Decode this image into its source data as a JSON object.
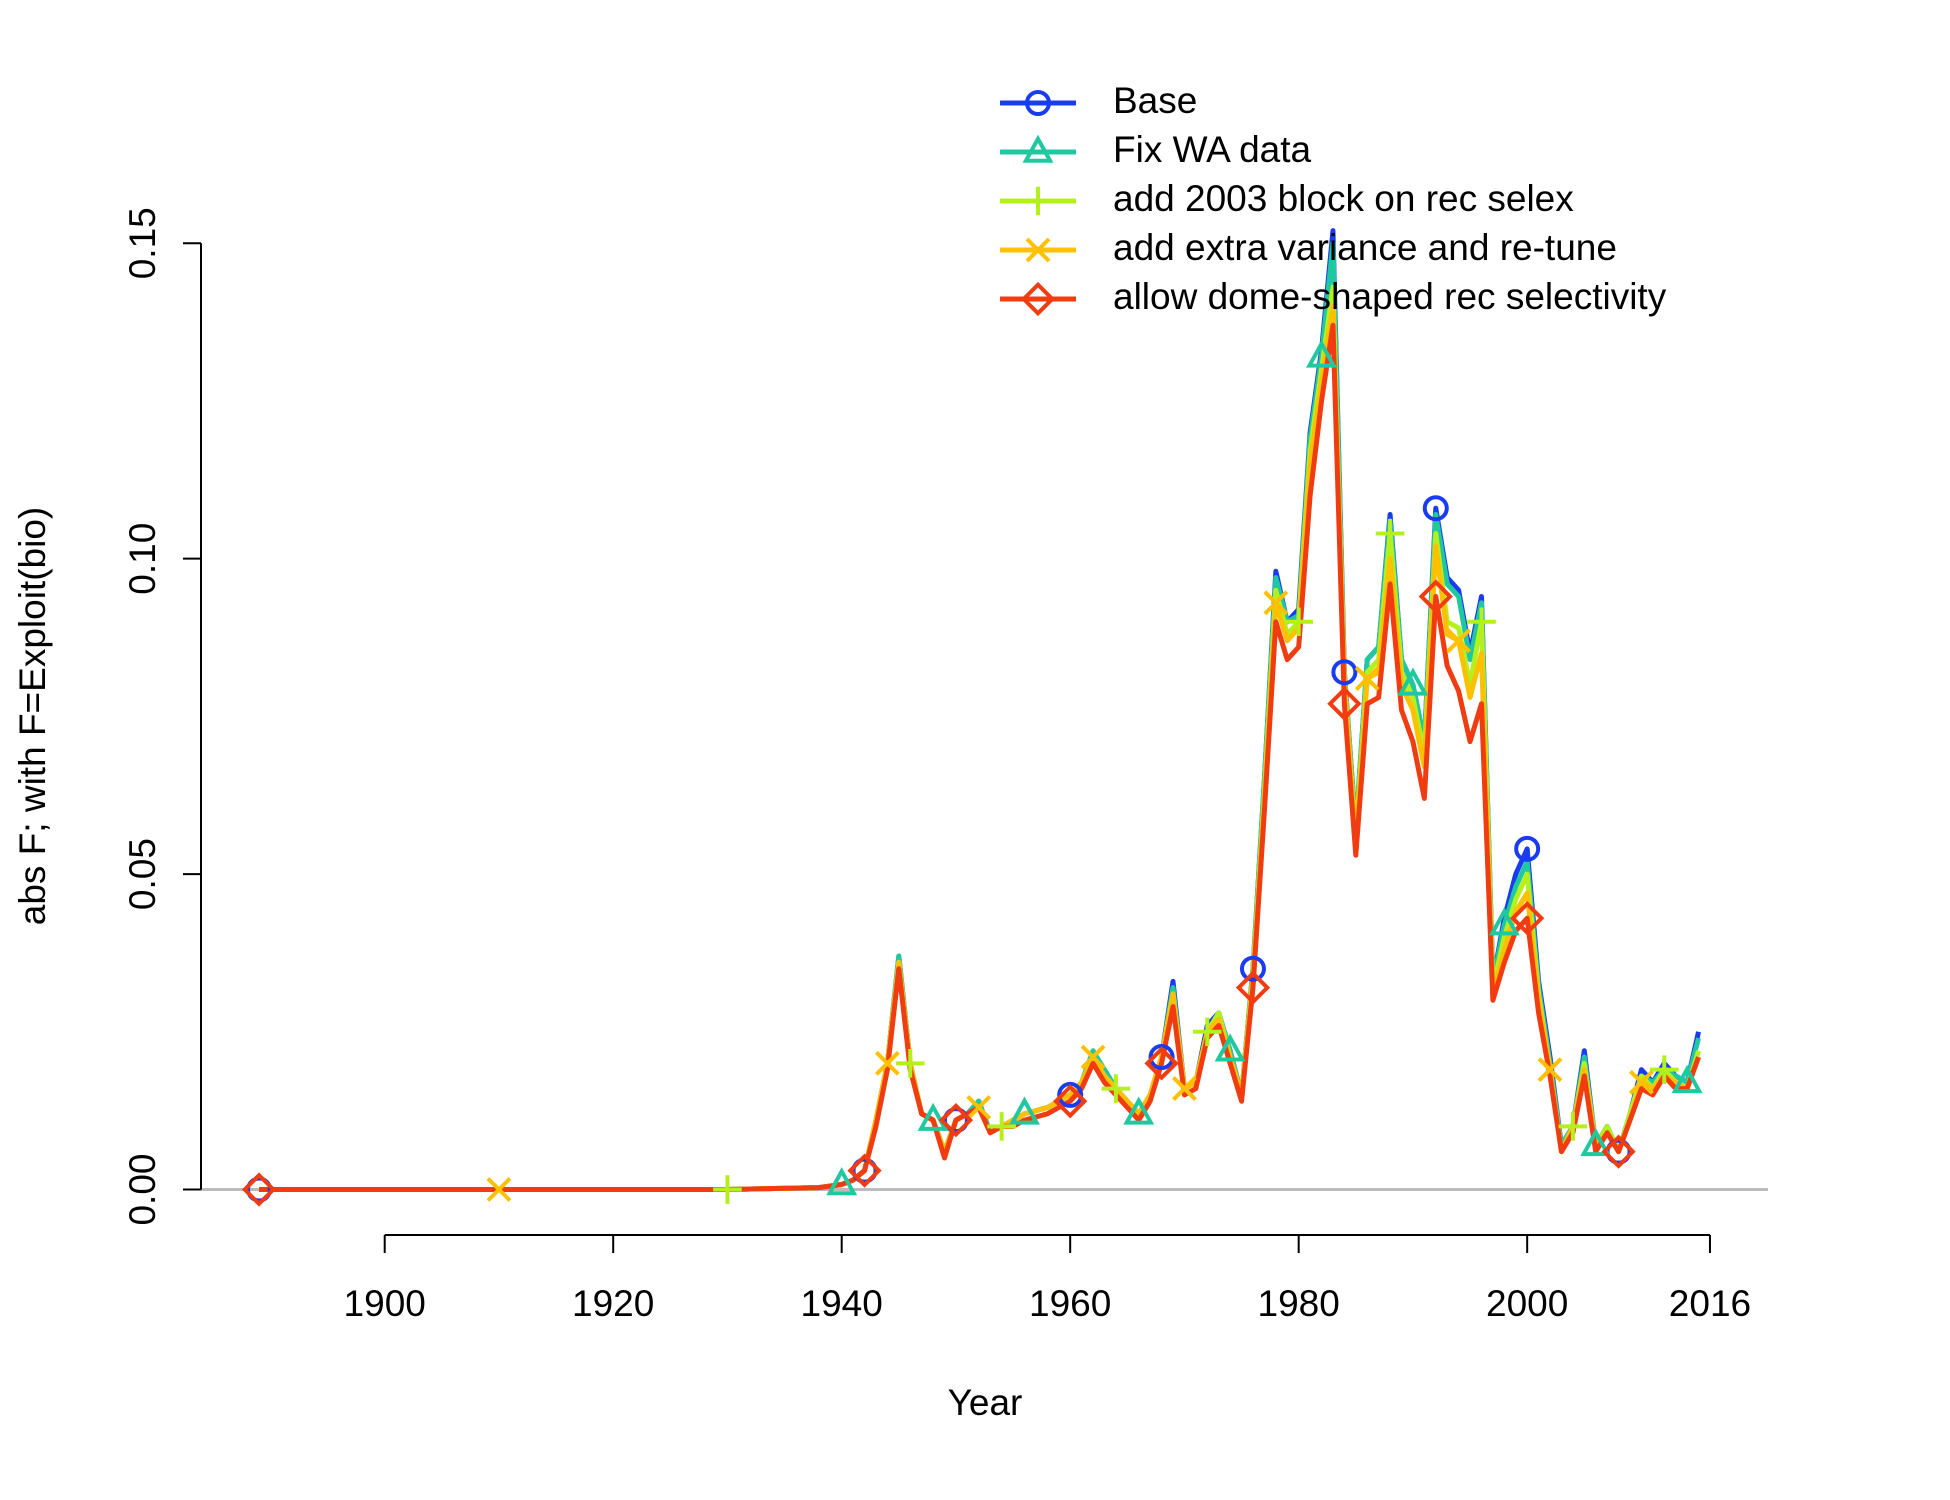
{
  "chart_data": {
    "type": "line",
    "xlabel": "Year",
    "ylabel": "abs F; with F=Exploit(bio)",
    "x": [
      1889,
      1900,
      1910,
      1920,
      1930,
      1938,
      1940,
      1941,
      1942,
      1943,
      1944,
      1945,
      1946,
      1947,
      1948,
      1949,
      1950,
      1951,
      1952,
      1953,
      1954,
      1955,
      1956,
      1958,
      1960,
      1961,
      1962,
      1963,
      1964,
      1965,
      1966,
      1967,
      1968,
      1969,
      1970,
      1971,
      1972,
      1973,
      1974,
      1975,
      1976,
      1977,
      1978,
      1979,
      1980,
      1981,
      1982,
      1983,
      1984,
      1985,
      1986,
      1987,
      1988,
      1989,
      1990,
      1991,
      1992,
      1993,
      1994,
      1995,
      1996,
      1997,
      1998,
      1999,
      2000,
      2001,
      2002,
      2003,
      2004,
      2005,
      2006,
      2007,
      2008,
      2009,
      2010,
      2011,
      2012,
      2013,
      2014,
      2015
    ],
    "series": [
      {
        "name": "Base",
        "color": "#1a3cf0",
        "marker": "circle",
        "values": [
          0,
          0,
          0,
          0,
          0,
          0.0003,
          0.0008,
          0.0015,
          0.003,
          0.011,
          0.02,
          0.037,
          0.02,
          0.012,
          0.011,
          0.006,
          0.011,
          0.012,
          0.014,
          0.009,
          0.01,
          0.011,
          0.012,
          0.013,
          0.015,
          0.017,
          0.021,
          0.019,
          0.016,
          0.014,
          0.012,
          0.015,
          0.021,
          0.033,
          0.016,
          0.017,
          0.026,
          0.028,
          0.022,
          0.015,
          0.035,
          0.065,
          0.098,
          0.09,
          0.092,
          0.12,
          0.133,
          0.152,
          0.082,
          0.057,
          0.084,
          0.086,
          0.107,
          0.084,
          0.08,
          0.071,
          0.108,
          0.097,
          0.095,
          0.085,
          0.094,
          0.033,
          0.043,
          0.05,
          0.054,
          0.033,
          0.021,
          0.007,
          0.01,
          0.022,
          0.007,
          0.01,
          0.006,
          0.012,
          0.019,
          0.017,
          0.02,
          0.018,
          0.017,
          0.025
        ]
      },
      {
        "name": "Fix WA data",
        "color": "#20c8a0",
        "marker": "triangle",
        "values": [
          0,
          0,
          0,
          0,
          0,
          0.0003,
          0.0008,
          0.0015,
          0.003,
          0.011,
          0.02,
          0.037,
          0.02,
          0.012,
          0.011,
          0.006,
          0.011,
          0.012,
          0.014,
          0.009,
          0.01,
          0.011,
          0.012,
          0.013,
          0.015,
          0.017,
          0.022,
          0.019,
          0.016,
          0.014,
          0.012,
          0.015,
          0.021,
          0.032,
          0.016,
          0.017,
          0.025,
          0.028,
          0.022,
          0.015,
          0.035,
          0.065,
          0.097,
          0.09,
          0.091,
          0.119,
          0.132,
          0.15,
          0.082,
          0.057,
          0.084,
          0.086,
          0.106,
          0.084,
          0.08,
          0.071,
          0.107,
          0.096,
          0.094,
          0.084,
          0.093,
          0.033,
          0.042,
          0.048,
          0.052,
          0.032,
          0.02,
          0.007,
          0.01,
          0.021,
          0.007,
          0.01,
          0.006,
          0.012,
          0.018,
          0.017,
          0.019,
          0.018,
          0.017,
          0.024
        ]
      },
      {
        "name": "add 2003 block on rec selex",
        "color": "#b4f01e",
        "marker": "plus",
        "values": [
          0,
          0,
          0,
          0,
          0,
          0.0003,
          0.0008,
          0.0015,
          0.003,
          0.011,
          0.02,
          0.036,
          0.02,
          0.012,
          0.011,
          0.006,
          0.011,
          0.012,
          0.013,
          0.009,
          0.01,
          0.011,
          0.012,
          0.013,
          0.015,
          0.017,
          0.021,
          0.018,
          0.016,
          0.014,
          0.012,
          0.015,
          0.021,
          0.031,
          0.016,
          0.017,
          0.025,
          0.028,
          0.021,
          0.015,
          0.034,
          0.063,
          0.095,
          0.088,
          0.09,
          0.117,
          0.13,
          0.143,
          0.08,
          0.056,
          0.082,
          0.084,
          0.104,
          0.082,
          0.078,
          0.069,
          0.104,
          0.09,
          0.089,
          0.08,
          0.09,
          0.032,
          0.04,
          0.046,
          0.05,
          0.031,
          0.019,
          0.006,
          0.01,
          0.02,
          0.007,
          0.01,
          0.006,
          0.012,
          0.018,
          0.016,
          0.019,
          0.017,
          0.016,
          0.022
        ]
      },
      {
        "name": "add extra variance and re-tune",
        "color": "#ffc000",
        "marker": "x",
        "values": [
          0,
          0,
          0,
          0,
          0,
          0.0003,
          0.0008,
          0.0015,
          0.003,
          0.011,
          0.02,
          0.036,
          0.02,
          0.012,
          0.011,
          0.006,
          0.011,
          0.012,
          0.013,
          0.009,
          0.01,
          0.011,
          0.012,
          0.013,
          0.015,
          0.017,
          0.021,
          0.018,
          0.016,
          0.014,
          0.012,
          0.015,
          0.021,
          0.031,
          0.016,
          0.017,
          0.025,
          0.027,
          0.021,
          0.015,
          0.034,
          0.062,
          0.093,
          0.087,
          0.089,
          0.115,
          0.128,
          0.14,
          0.081,
          0.055,
          0.081,
          0.082,
          0.1,
          0.08,
          0.076,
          0.067,
          0.102,
          0.088,
          0.087,
          0.078,
          0.085,
          0.031,
          0.038,
          0.044,
          0.047,
          0.03,
          0.019,
          0.006,
          0.01,
          0.019,
          0.007,
          0.009,
          0.006,
          0.011,
          0.017,
          0.016,
          0.018,
          0.017,
          0.016,
          0.021
        ]
      },
      {
        "name": "allow dome-shaped rec selectivity",
        "color": "#f03c10",
        "marker": "diamond",
        "values": [
          0,
          0,
          0,
          0,
          0,
          0.0003,
          0.0008,
          0.0015,
          0.003,
          0.01,
          0.019,
          0.035,
          0.019,
          0.012,
          0.011,
          0.005,
          0.011,
          0.012,
          0.013,
          0.009,
          0.01,
          0.01,
          0.011,
          0.012,
          0.014,
          0.016,
          0.02,
          0.017,
          0.015,
          0.013,
          0.011,
          0.014,
          0.02,
          0.029,
          0.015,
          0.016,
          0.024,
          0.026,
          0.02,
          0.014,
          0.032,
          0.06,
          0.09,
          0.084,
          0.086,
          0.11,
          0.125,
          0.137,
          0.077,
          0.053,
          0.077,
          0.078,
          0.096,
          0.076,
          0.071,
          0.062,
          0.094,
          0.083,
          0.079,
          0.071,
          0.077,
          0.03,
          0.036,
          0.041,
          0.043,
          0.028,
          0.018,
          0.006,
          0.009,
          0.018,
          0.006,
          0.009,
          0.006,
          0.011,
          0.016,
          0.015,
          0.018,
          0.016,
          0.016,
          0.021
        ]
      }
    ],
    "xlim": [
      1883.92,
      2021.08
    ],
    "ylim": [
      -0.0061,
      0.1586
    ],
    "xticks": [
      1900,
      1920,
      1940,
      1960,
      1980,
      2000,
      2016
    ],
    "yticks": [
      {
        "value": 0,
        "label": "0.00"
      },
      0.05,
      {
        "value": 0.1,
        "label": "0.10"
      },
      0.15
    ],
    "hline": 0,
    "legend": "top"
  }
}
